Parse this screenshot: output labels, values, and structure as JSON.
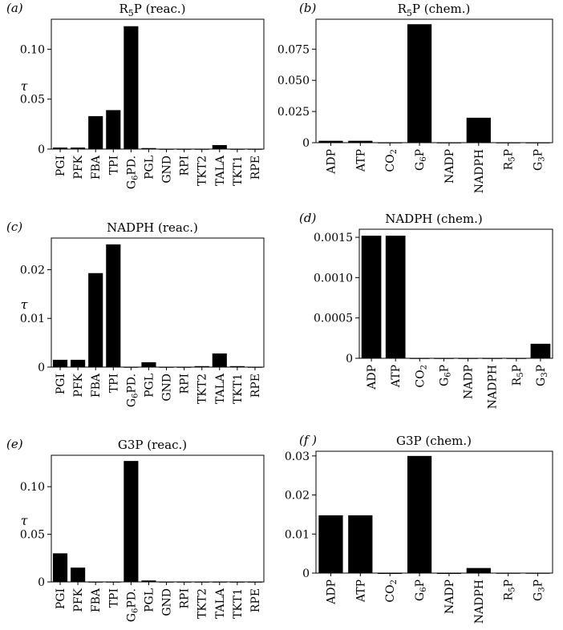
{
  "colors": {
    "bar": "#000000",
    "axis": "#000000",
    "background": "#ffffff"
  },
  "chart_data": [
    {
      "type": "bar",
      "panel_label": "(a)",
      "title": "R5P (reac.)",
      "title_main": "R",
      "title_sub": "5",
      "title_rest": "P (reac.)",
      "ylabel": "τ",
      "categories": [
        "PGI",
        "PFK",
        "FBA",
        "TPI",
        "G6PD.",
        "PGL",
        "GND",
        "RPI",
        "TKT2",
        "TALA",
        "TKT1",
        "RPE"
      ],
      "values": [
        0.0015,
        0.0015,
        0.033,
        0.039,
        0.123,
        0.001,
        0,
        0,
        0,
        0.004,
        0,
        0
      ],
      "ylim": [
        0,
        0.13
      ],
      "yticks": [
        0,
        0.05,
        0.1
      ],
      "ytick_labels": [
        "0",
        "0.05",
        "0.10"
      ]
    },
    {
      "type": "bar",
      "panel_label": "(b)",
      "title": "R5P (chem.)",
      "title_main": "R",
      "title_sub": "5",
      "title_rest": "P (chem.)",
      "ylabel": "",
      "categories": [
        "ADP",
        "ATP",
        "CO2",
        "G6P",
        "NADP",
        "NADPH",
        "R5P",
        "G3P"
      ],
      "values": [
        0.0015,
        0.0015,
        0,
        0.095,
        0,
        0.02,
        0,
        0
      ],
      "ylim": [
        0,
        0.099
      ],
      "yticks": [
        0,
        0.025,
        0.05,
        0.075
      ],
      "ytick_labels": [
        "0",
        "0.025",
        "0.050",
        "0.075"
      ]
    },
    {
      "type": "bar",
      "panel_label": "(c)",
      "title": "NADPH (reac.)",
      "title_main": "NADPH (reac.)",
      "title_sub": "",
      "title_rest": "",
      "ylabel": "τ",
      "categories": [
        "PGI",
        "PFK",
        "FBA",
        "TPI",
        "G6PD.",
        "PGL",
        "GND",
        "RPI",
        "TKT2",
        "TALA",
        "TKT1",
        "RPE"
      ],
      "values": [
        0.0015,
        0.0015,
        0.0193,
        0.0252,
        0,
        0.001,
        0,
        0,
        0.0002,
        0.0028,
        0.0002,
        0
      ],
      "ylim": [
        0,
        0.0265
      ],
      "yticks": [
        0,
        0.01,
        0.02
      ],
      "ytick_labels": [
        "0",
        "0.01",
        "0.02"
      ]
    },
    {
      "type": "bar",
      "panel_label": "(d)",
      "title": "NADPH (chem.)",
      "title_main": "NADPH (chem.)",
      "title_sub": "",
      "title_rest": "",
      "ylabel": "",
      "categories": [
        "ADP",
        "ATP",
        "CO2",
        "G6P",
        "NADP",
        "NADPH",
        "R5P",
        "G3P"
      ],
      "values": [
        0.00152,
        0.00152,
        0,
        0,
        0,
        0,
        0,
        0.00018
      ],
      "ylim": [
        0,
        0.0016
      ],
      "yticks": [
        0,
        0.0005,
        0.001,
        0.0015
      ],
      "ytick_labels": [
        "0",
        "0.0005",
        "0.0010",
        "0.0015"
      ]
    },
    {
      "type": "bar",
      "panel_label": "(e)",
      "title": "G3P (reac.)",
      "title_main": "G3P (reac.)",
      "title_sub": "",
      "title_rest": "",
      "ylabel": "τ",
      "categories": [
        "PGI",
        "PFK",
        "FBA",
        "TPI",
        "G6PD.",
        "PGL",
        "GND",
        "RPI",
        "TKT2",
        "TALA",
        "TKT1",
        "RPE"
      ],
      "values": [
        0.03,
        0.015,
        0,
        0,
        0.127,
        0.0015,
        0,
        0,
        0,
        0,
        0,
        0
      ],
      "ylim": [
        0,
        0.133
      ],
      "yticks": [
        0,
        0.05,
        0.1
      ],
      "ytick_labels": [
        "0",
        "0.05",
        "0.10"
      ]
    },
    {
      "type": "bar",
      "panel_label": "(f )",
      "title": "G3P (chem.)",
      "title_main": "G3P (chem.)",
      "title_sub": "",
      "title_rest": "",
      "ylabel": "",
      "categories": [
        "ADP",
        "ATP",
        "CO2",
        "G6P",
        "NADP",
        "NADPH",
        "R5P",
        "G3P"
      ],
      "values": [
        0.0148,
        0.0148,
        0.0001,
        0.03,
        0.0001,
        0.0013,
        0,
        0
      ],
      "ylim": [
        0,
        0.0312
      ],
      "yticks": [
        0,
        0.01,
        0.02,
        0.03
      ],
      "ytick_labels": [
        "0",
        "0.01",
        "0.02",
        "0.03"
      ]
    }
  ]
}
